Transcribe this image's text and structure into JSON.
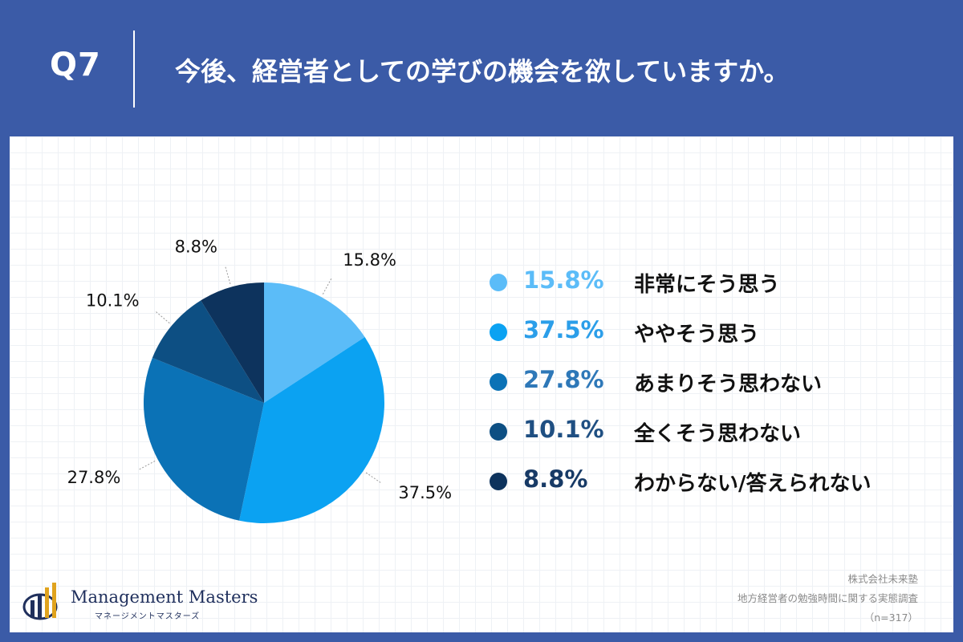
{
  "header": {
    "q_label": "Q7",
    "question": "今後、経営者としての学びの機会を欲していますか。"
  },
  "chart_data": {
    "type": "pie",
    "slices": [
      {
        "label": "非常にそう思う",
        "value": 15.8,
        "display": "15.8%",
        "color": "#5bbcf8"
      },
      {
        "label": "ややそう思う",
        "value": 37.5,
        "display": "37.5%",
        "color": "#0ba2f2"
      },
      {
        "label": "あまりそう思わない",
        "value": 27.8,
        "display": "27.8%",
        "color": "#0b72b6"
      },
      {
        "label": "全くそう思わない",
        "value": 10.1,
        "display": "10.1%",
        "color": "#0d4f83"
      },
      {
        "label": "わからない/答えられない",
        "value": 8.8,
        "display": "8.8%",
        "color": "#0d335d"
      }
    ],
    "legend_position": "right"
  },
  "legend_pct_colors": [
    "#5bbcf8",
    "#2b9ee9",
    "#2e78b8",
    "#1f4f82",
    "#173a66"
  ],
  "logo": {
    "name": "Management Masters",
    "subtitle": "マネージメントマスターズ"
  },
  "source": {
    "line1": "株式会社未来塾",
    "line2": "地方経営者の勉強時間に関する実態調査",
    "line3": "（n=317）"
  }
}
